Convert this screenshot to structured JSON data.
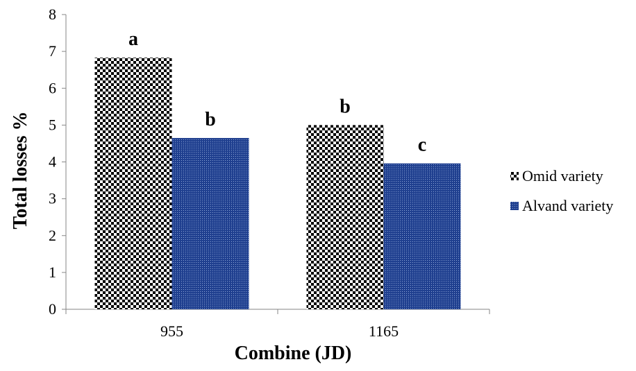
{
  "chart_data": {
    "type": "bar",
    "categories": [
      "955",
      "1165"
    ],
    "series": [
      {
        "name": "Omid variety",
        "values": [
          6.83,
          5.0
        ],
        "annotations": [
          "a",
          "b"
        ],
        "pattern": "checkerboard",
        "color": "#000000"
      },
      {
        "name": "Alvand variety",
        "values": [
          4.65,
          3.96
        ],
        "annotations": [
          "b",
          "c"
        ],
        "pattern": "dotted",
        "color": "#1F3F8F"
      }
    ],
    "xlabel": "Combine (JD)",
    "ylabel": "Total losses %",
    "ylim": [
      0,
      8
    ],
    "yticks": [
      "0",
      "1",
      "2",
      "3",
      "4",
      "5",
      "6",
      "7",
      "8"
    ],
    "grid": false,
    "legend_position": "right"
  }
}
